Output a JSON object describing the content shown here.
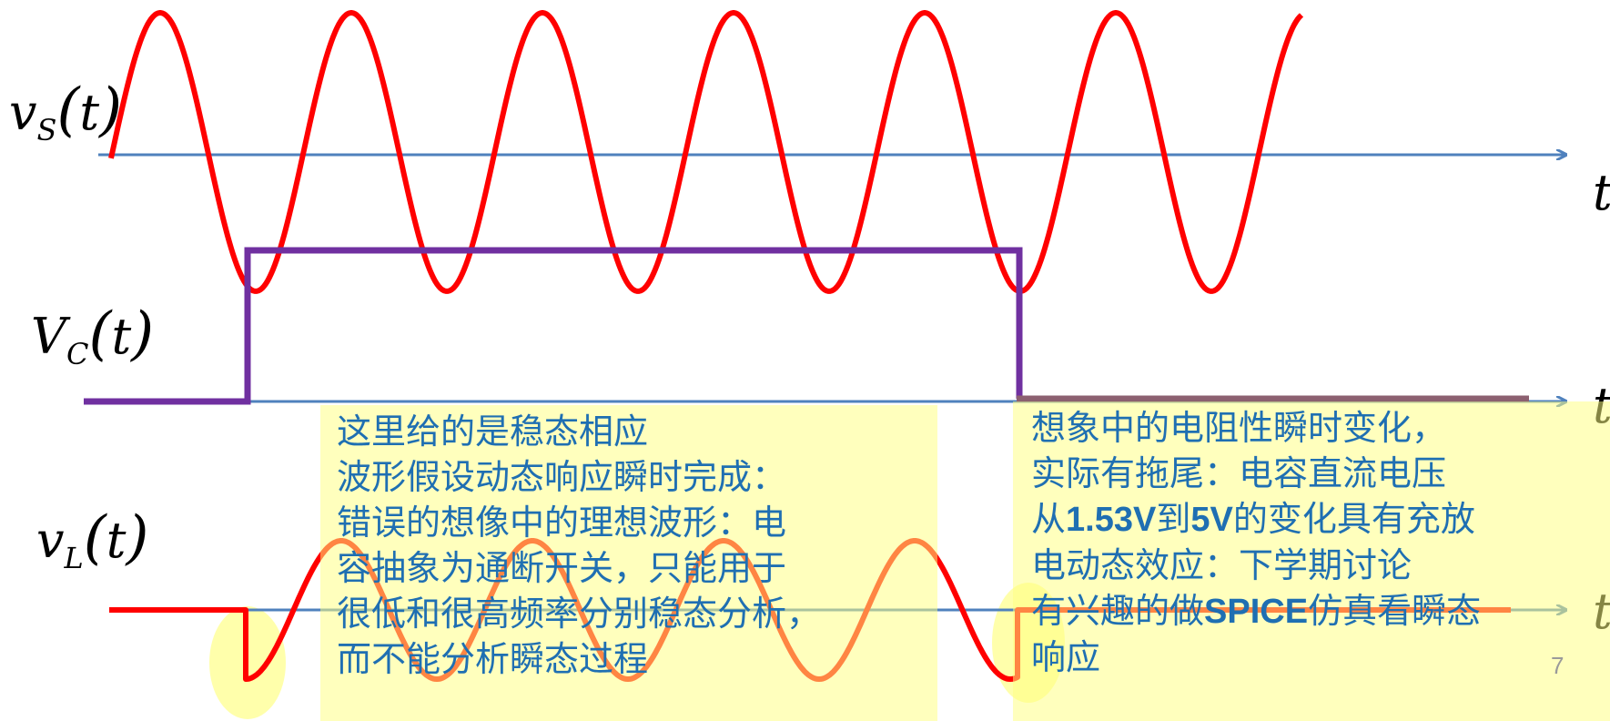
{
  "labels": {
    "vs": "v_S(t)",
    "vc": "V_C(t)",
    "vl": "v_L(t)",
    "t_axis": "t"
  },
  "notes": {
    "left": [
      "这里给的是稳态相应",
      "波形假设动态响应瞬时完成：",
      "错误的想像中的理想波形：电",
      "容抽象为通断开关，只能用于",
      "很低和很高频率分别稳态分析，",
      "而不能分析瞬态过程"
    ],
    "right": {
      "line1": "想象中的电阻性瞬时变化，",
      "line2": "实际有拖尾：电容直流电压",
      "line3_pre": "从",
      "line3_v1": "1.53V",
      "line3_mid": "到",
      "line3_v2": "5V",
      "line3_post": "的变化具有充放",
      "line4": "电动态效应：下学期讨论",
      "line5_pre": "有兴趣的做",
      "line5_spice": "SPICE",
      "line5_post": "仿真看瞬态",
      "line6": "响应"
    }
  },
  "slide_number": "7",
  "colors": {
    "axis": "#4f81bd",
    "vs_wave": "#ff0000",
    "vc_wave": "#7030a0",
    "vl_wave": "#ff0000",
    "note_bg": "#ffff80",
    "note_text": "#1f6fb2",
    "highlight": "#ffff66"
  }
}
